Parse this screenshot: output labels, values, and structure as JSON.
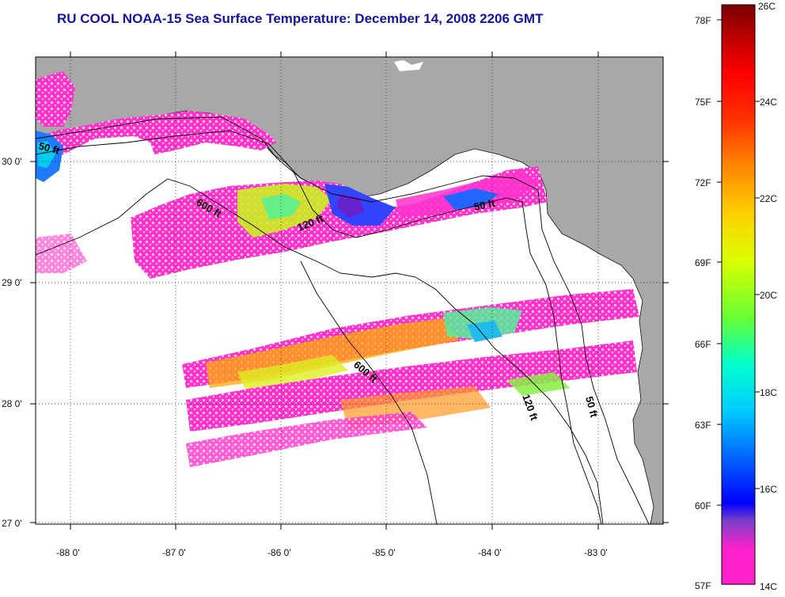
{
  "title": "RU COOL  NOAA-15  Sea Surface Temperature:  December 14, 2008 2206 GMT",
  "map": {
    "lat_labels": [
      "30 0'",
      "29 0'",
      "28 0'",
      "27 0'"
    ],
    "lon_labels": [
      "-88 0'",
      "-87 0'",
      "-86 0'",
      "-85 0'",
      "-84 0'",
      "-83 0'"
    ],
    "contour_labels": [
      "50 ft",
      "600 ft",
      "120 ft",
      "50 ft",
      "600 ft",
      "120 ft",
      "50 ft"
    ],
    "land_color": "#a8a8a8",
    "no_data_color": "#ffffff"
  },
  "colorbar": {
    "f_labels": [
      "78F",
      "75F",
      "72F",
      "69F",
      "66F",
      "63F",
      "60F",
      "57F"
    ],
    "c_labels": [
      "26C",
      "24C",
      "22C",
      "20C",
      "18C",
      "16C",
      "14C"
    ],
    "stops": [
      "#ff22cc",
      "#7a3fc8",
      "#0000ff",
      "#0099ff",
      "#00e5ff",
      "#33ff99",
      "#ccff00",
      "#ffee00",
      "#ffaa00",
      "#ff5500",
      "#ff0000",
      "#b00000",
      "#7a0000"
    ]
  }
}
